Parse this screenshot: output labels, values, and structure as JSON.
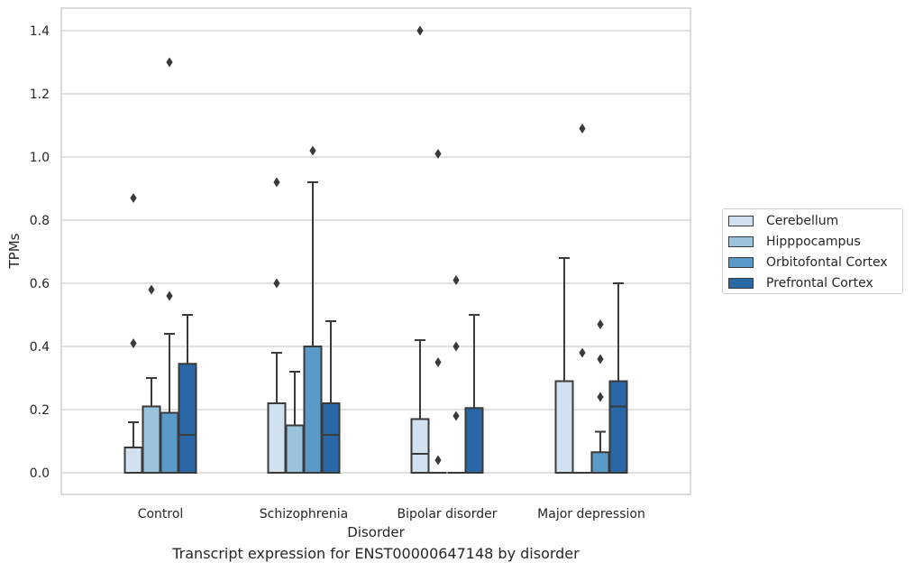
{
  "chart_data": {
    "type": "boxplot",
    "caption": "Transcript expression for ENST00000647148 by disorder",
    "xlabel": "Disorder",
    "ylabel": "TPMs",
    "ylim": [
      -0.07,
      1.47
    ],
    "y_ticks": [
      "0.0",
      "0.2",
      "0.4",
      "0.6",
      "0.8",
      "1.0",
      "1.2",
      "1.4"
    ],
    "grid": true,
    "legend_position": "right",
    "categories": [
      "Control",
      "Schizophrenia",
      "Bipolar disorder",
      "Major depression"
    ],
    "series": [
      {
        "name": "Cerebellum",
        "color": "#d1e1f0",
        "boxes": [
          {
            "q1": 0.0,
            "median": 0.0,
            "q3": 0.08,
            "whisker_low": 0.0,
            "whisker_high": 0.16,
            "outliers": [
              0.41,
              0.87
            ]
          },
          {
            "q1": 0.0,
            "median": 0.0,
            "q3": 0.22,
            "whisker_low": 0.0,
            "whisker_high": 0.38,
            "outliers": [
              0.6,
              0.92
            ]
          },
          {
            "q1": 0.0,
            "median": 0.06,
            "q3": 0.17,
            "whisker_low": 0.0,
            "whisker_high": 0.42,
            "outliers": [
              1.4
            ]
          },
          {
            "q1": 0.0,
            "median": 0.0,
            "q3": 0.29,
            "whisker_low": 0.0,
            "whisker_high": 0.68,
            "outliers": []
          }
        ]
      },
      {
        "name": "Hipppocampus",
        "color": "#9ac4dd",
        "boxes": [
          {
            "q1": 0.0,
            "median": 0.0,
            "q3": 0.21,
            "whisker_low": 0.0,
            "whisker_high": 0.3,
            "outliers": [
              0.58
            ]
          },
          {
            "q1": 0.0,
            "median": 0.0,
            "q3": 0.15,
            "whisker_low": 0.0,
            "whisker_high": 0.32,
            "outliers": []
          },
          {
            "q1": 0.0,
            "median": 0.0,
            "q3": 0.0,
            "whisker_low": 0.0,
            "whisker_high": 0.0,
            "outliers": [
              0.04,
              0.35,
              1.01
            ]
          },
          {
            "q1": 0.0,
            "median": 0.0,
            "q3": 0.0,
            "whisker_low": 0.0,
            "whisker_high": 0.0,
            "outliers": [
              0.38,
              1.09
            ]
          }
        ]
      },
      {
        "name": "Orbitofontal Cortex",
        "color": "#5a9ac8",
        "boxes": [
          {
            "q1": 0.0,
            "median": 0.0,
            "q3": 0.19,
            "whisker_low": 0.0,
            "whisker_high": 0.44,
            "outliers": [
              0.56,
              1.3
            ]
          },
          {
            "q1": 0.0,
            "median": 0.0,
            "q3": 0.4,
            "whisker_low": 0.0,
            "whisker_high": 0.92,
            "outliers": [
              1.02
            ]
          },
          {
            "q1": 0.0,
            "median": 0.0,
            "q3": 0.0,
            "whisker_low": 0.0,
            "whisker_high": 0.0,
            "outliers": [
              0.18,
              0.4,
              0.61
            ]
          },
          {
            "q1": 0.0,
            "median": 0.0,
            "q3": 0.065,
            "whisker_low": 0.0,
            "whisker_high": 0.13,
            "outliers": [
              0.24,
              0.36,
              0.47
            ]
          }
        ]
      },
      {
        "name": "Prefrontal Cortex",
        "color": "#2a67a6",
        "boxes": [
          {
            "q1": 0.0,
            "median": 0.12,
            "q3": 0.345,
            "whisker_low": 0.0,
            "whisker_high": 0.5,
            "outliers": []
          },
          {
            "q1": 0.0,
            "median": 0.12,
            "q3": 0.22,
            "whisker_low": 0.0,
            "whisker_high": 0.48,
            "outliers": []
          },
          {
            "q1": 0.0,
            "median": 0.0,
            "q3": 0.205,
            "whisker_low": 0.0,
            "whisker_high": 0.5,
            "outliers": []
          },
          {
            "q1": 0.0,
            "median": 0.21,
            "q3": 0.29,
            "whisker_low": 0.0,
            "whisker_high": 0.6,
            "outliers": []
          }
        ]
      }
    ]
  }
}
